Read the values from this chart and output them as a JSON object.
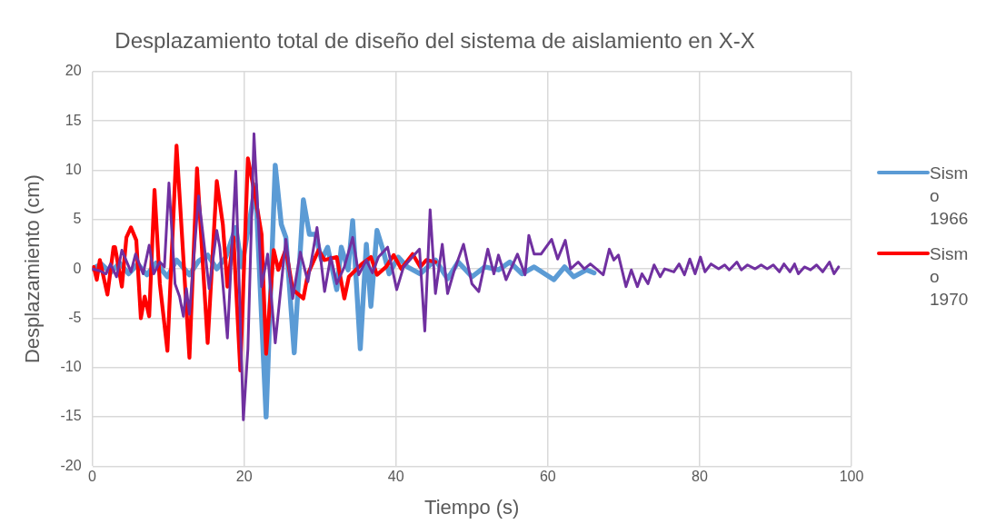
{
  "chart_data": {
    "type": "line",
    "title": "Desplazamiento total de diseño del sistema de aislamiento en X-X",
    "xlabel": "Tiempo (s)",
    "ylabel": "Desplazamiento (cm)",
    "xlim": [
      0,
      100
    ],
    "xticks": [
      0,
      20,
      40,
      60,
      80,
      100
    ],
    "ylim": [
      -20,
      20
    ],
    "yticks": [
      -20,
      -15,
      -10,
      -5,
      0,
      5,
      10,
      15,
      20
    ],
    "grid": true,
    "legend": "right",
    "marker": "none",
    "line_style": "solid",
    "series": [
      {
        "name": "Sismo 1966",
        "color": "#5b9bd5",
        "x": [
          0,
          1.2,
          2.4,
          3.6,
          4.8,
          6,
          7.2,
          8.4,
          9.9,
          11.1,
          12.8,
          14,
          15.2,
          16.4,
          17.6,
          18.9,
          19.7,
          21.5,
          22.9,
          24.1,
          24.9,
          25.5,
          26.6,
          27.8,
          28.6,
          29.4,
          30.2,
          31,
          32.2,
          32.8,
          33.7,
          34.3,
          35.3,
          36.1,
          36.7,
          37.5,
          38.3,
          39.1,
          40.3,
          41.5,
          43.2,
          45.2,
          46.8,
          48.2,
          50,
          51.7,
          53.5,
          55,
          56.6,
          58.2,
          60.8,
          62.2,
          63.4,
          65.1,
          66.1
        ],
        "values": [
          0,
          0.5,
          -0.4,
          0.6,
          -0.5,
          0.5,
          -0.6,
          0.6,
          -0.8,
          0.9,
          -0.6,
          0.8,
          1.4,
          0,
          1.2,
          4.2,
          0.2,
          8.5,
          -15,
          10.5,
          4.5,
          3.2,
          -8.5,
          7,
          3.5,
          3.5,
          0.9,
          2.2,
          -2.1,
          2.2,
          -0.1,
          4.9,
          -8.1,
          2.5,
          -3.8,
          3.9,
          1.9,
          -0.5,
          1.2,
          0.2,
          -0.5,
          0.9,
          -1,
          0.7,
          -0.8,
          0.2,
          -0.1,
          0.7,
          -0.5,
          0.2,
          -1.1,
          0.2,
          -0.8,
          -0.1,
          -0.4
        ]
      },
      {
        "name": "Sismo 1970",
        "color": "#ff0000",
        "x": [
          0,
          0.2,
          0.6,
          1,
          2,
          2.8,
          3,
          3.9,
          4.5,
          5.1,
          5.8,
          6.4,
          6.9,
          7.5,
          8.2,
          8.9,
          9.9,
          11.1,
          12.8,
          13.8,
          15.2,
          16.4,
          17.2,
          17.8,
          18.6,
          19.5,
          20.5,
          21.5,
          22.3,
          22.9,
          23.9,
          24.5,
          25.5,
          26.4,
          27.8,
          28.4,
          29.8,
          30.6,
          32.2,
          33.2,
          33.8,
          35.5,
          36.7,
          37.5,
          38.7,
          39.7,
          40.7,
          42.2,
          43.2,
          44,
          45.2
        ],
        "values": [
          0,
          0.2,
          -1.1,
          0.9,
          -2.6,
          2.2,
          2.2,
          -1.8,
          3.2,
          4.2,
          2.9,
          -5,
          -2.8,
          -4.8,
          8,
          -1.5,
          -8.3,
          12.5,
          -9,
          10.2,
          -7.5,
          8.9,
          4.5,
          -1.8,
          3.2,
          -10.3,
          11.2,
          7.2,
          3.5,
          -8.6,
          1.9,
          -0.1,
          2,
          -2.1,
          -3,
          -0.5,
          1.9,
          0.9,
          1.2,
          -3,
          -0.8,
          0.5,
          1.2,
          -0.6,
          0.2,
          1.4,
          0,
          1.5,
          0.2,
          0.9,
          0.7
        ]
      },
      {
        "color": "#7030a0",
        "x": [
          0,
          1,
          1.8,
          2.4,
          3.2,
          3.9,
          5.1,
          5.7,
          6.7,
          7.5,
          8.1,
          8.9,
          9.5,
          10.1,
          10.9,
          11.5,
          12,
          12.4,
          12.8,
          14,
          15.4,
          16.4,
          16.8,
          17.8,
          18.9,
          19.9,
          20.5,
          21.3,
          22.3,
          23.1,
          24.1,
          25.5,
          26.4,
          27.4,
          28.4,
          29.6,
          30.6,
          31.4,
          32.2,
          33.2,
          34.3,
          35.1,
          36.1,
          36.9,
          37.7,
          38.9,
          40.1,
          41,
          43.1,
          43.8,
          44.5,
          45.2,
          46.1,
          46.8,
          47.7,
          48.9,
          50,
          50.9,
          52.1,
          52.9,
          53.5,
          54.5,
          56,
          57,
          57.5,
          58.2,
          59.1,
          60.5,
          61.3,
          62.3,
          63,
          64,
          64.8,
          65.6,
          66.4,
          67.3,
          68.1,
          68.7,
          69.3,
          70.3,
          71,
          71.8,
          72.4,
          73.2,
          74,
          74.8,
          75.4,
          76.6,
          77.3,
          78,
          78.7,
          79.4,
          80.1,
          80.7,
          81.5,
          82.5,
          83.3,
          83.9,
          84.9,
          85.5,
          86.3,
          87.3,
          88.1,
          88.9,
          89.7,
          90.5,
          91.1,
          91.9,
          92.5,
          93,
          93.8,
          94.6,
          95.4,
          96.2,
          97.1,
          97.7,
          98.3
        ],
        "values": [
          0,
          -0.2,
          -0.5,
          0.5,
          -0.8,
          1.9,
          -0.3,
          1.5,
          -0.5,
          2.4,
          -0.5,
          0.7,
          0.2,
          8.7,
          -1.5,
          -2.8,
          -4.8,
          -2,
          -4.6,
          7.4,
          -2,
          3.9,
          2.2,
          -7,
          9.9,
          -15.3,
          -8.1,
          13.7,
          -1.8,
          1.5,
          -7.5,
          3,
          -3,
          1.7,
          -1.3,
          4.2,
          -2.3,
          1.2,
          -1.5,
          0.2,
          3.2,
          -0.6,
          0.9,
          -0.4,
          1.2,
          2.2,
          -2.1,
          0.2,
          2,
          -6.3,
          6,
          -2.5,
          2.5,
          -2.5,
          -0.1,
          2.5,
          -1.5,
          -2.3,
          2,
          -0.5,
          1.4,
          -1.1,
          1.5,
          -0.6,
          3.4,
          1.5,
          1.5,
          3,
          1,
          2.9,
          0,
          0.7,
          0,
          0.5,
          0,
          -0.6,
          2,
          0.9,
          1.4,
          -1.8,
          -0.1,
          -1.8,
          -0.5,
          -1.5,
          0.4,
          -0.8,
          0,
          -0.3,
          0.5,
          -0.6,
          1,
          -0.5,
          1.2,
          -0.3,
          0.5,
          0,
          0.4,
          -0.1,
          0.7,
          -0.1,
          0.4,
          0,
          0.4,
          0,
          0.4,
          -0.3,
          0.5,
          -0.3,
          0.5,
          -0.5,
          0.2,
          -0.1,
          0.4,
          -0.3,
          0.7,
          -0.5,
          0.2
        ]
      }
    ]
  }
}
